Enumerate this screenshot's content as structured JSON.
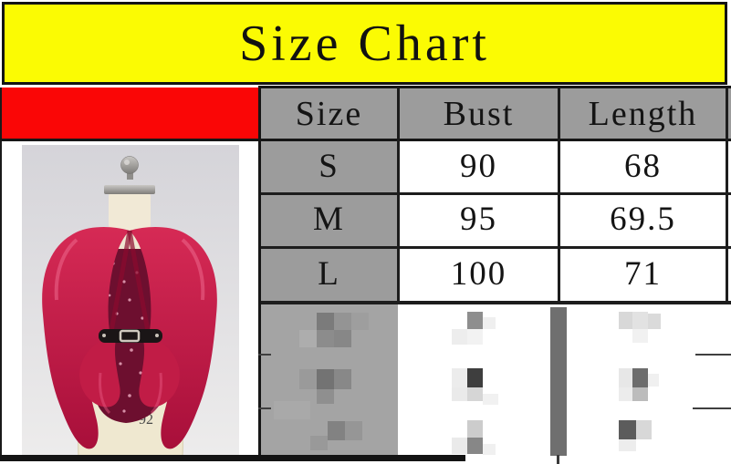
{
  "title": "Size Chart",
  "size_table": {
    "columns": [
      "Size",
      "Bust",
      "Length"
    ],
    "rows": [
      {
        "size": "S",
        "bust": "90",
        "length": "68"
      },
      {
        "size": "M",
        "bust": "95",
        "length": "69.5"
      },
      {
        "size": "L",
        "bust": "100",
        "length": "71"
      }
    ],
    "censored_rows": 3
  },
  "product_photo": {
    "base_label": "92"
  },
  "colors": {
    "banner_bg": "#fbfb03",
    "accent_red": "#fa0606",
    "header_gray": "#9c9c9c",
    "border_dark": "#161616",
    "jacket_red": "#c21944",
    "sequin_maroon": "#6d0f2f"
  },
  "chart_data": {
    "type": "table",
    "title": "Size Chart",
    "columns": [
      "Size",
      "Bust",
      "Length"
    ],
    "rows": [
      [
        "S",
        90,
        68
      ],
      [
        "M",
        95,
        69.5
      ],
      [
        "L",
        100,
        71
      ]
    ],
    "notes": "Three additional rows below L are pixelated/censored in the image"
  }
}
